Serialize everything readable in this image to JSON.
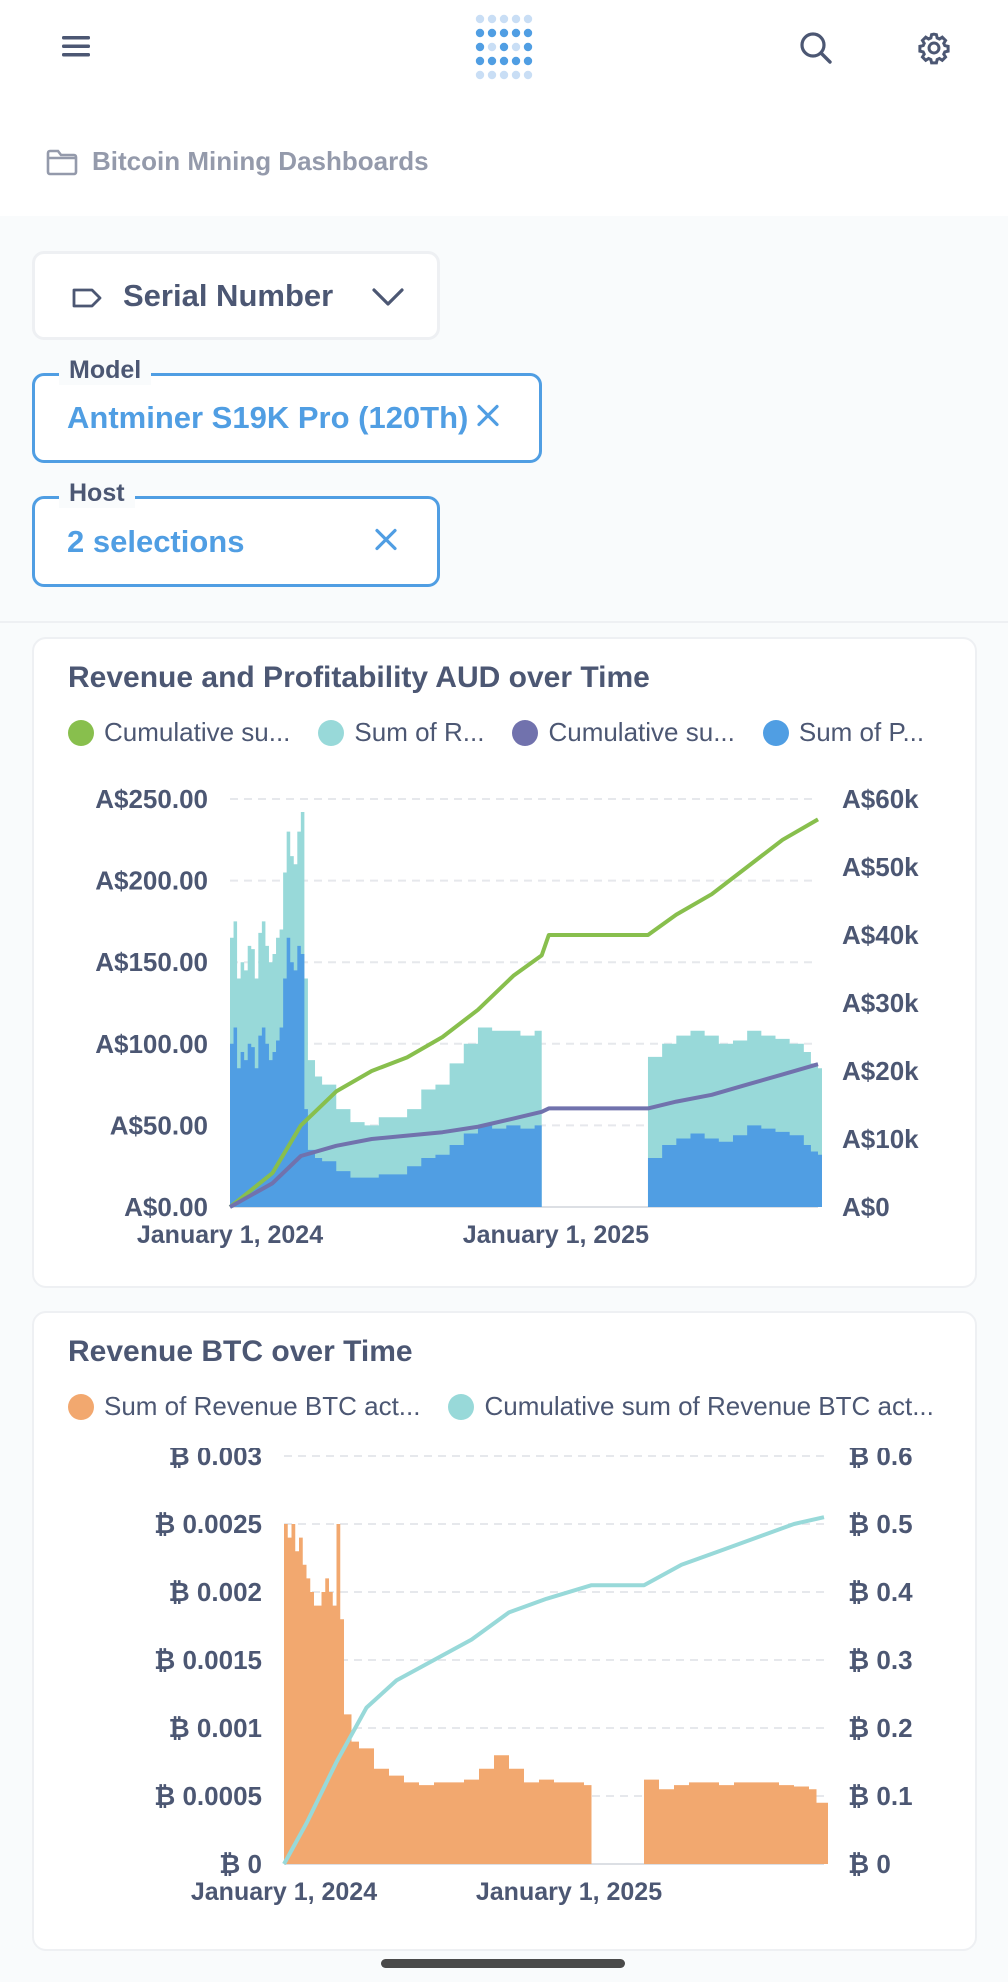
{
  "header": {
    "menu_icon": "hamburger-icon",
    "logo_icon": "metabase-logo-icon",
    "search_icon": "search-icon",
    "settings_icon": "gear-icon"
  },
  "breadcrumb": {
    "icon": "folder-icon",
    "label": "Bitcoin Mining Dashboards"
  },
  "filters": {
    "serial": {
      "label": "Serial Number",
      "icon": "tag-icon"
    },
    "model": {
      "legend": "Model",
      "value": "Antminer S19K Pro (120Th)"
    },
    "host": {
      "legend": "Host",
      "value": "2 selections"
    }
  },
  "colors": {
    "green": "#88BF4D",
    "teal": "#98D9D9",
    "purple": "#7172AD",
    "blue": "#509EE3",
    "orange": "#F2A86F"
  },
  "chart_data": [
    {
      "type": "bar",
      "title": "Revenue and Profitability AUD over Time",
      "legend": [
        "Cumulative su...",
        "Sum of R...",
        "Cumulative su...",
        "Sum of P..."
      ],
      "left_axis": {
        "ticks": [
          "A$0.00",
          "A$50.00",
          "A$100.00",
          "A$150.00",
          "A$200.00",
          "A$250.00"
        ],
        "range": [
          0,
          250
        ]
      },
      "right_axis": {
        "ticks": [
          "A$0",
          "A$10k",
          "A$20k",
          "A$30k",
          "A$40k",
          "A$50k",
          "A$60k"
        ],
        "range": [
          0,
          60000
        ]
      },
      "x_axis": {
        "ticks": [
          "January 1, 2024",
          "January 1, 2025"
        ]
      },
      "grid": true,
      "series": [
        {
          "color": "#98D9D9",
          "axis": "left",
          "kind": "bars",
          "points": [
            [
              0,
              165
            ],
            [
              0.05,
              175
            ],
            [
              0.1,
              140
            ],
            [
              0.15,
              150
            ],
            [
              0.2,
              145
            ],
            [
              0.25,
              160
            ],
            [
              0.3,
              158
            ],
            [
              0.35,
              140
            ],
            [
              0.4,
              168
            ],
            [
              0.45,
              175
            ],
            [
              0.5,
              160
            ],
            [
              0.55,
              150
            ],
            [
              0.6,
              155
            ],
            [
              0.65,
              165
            ],
            [
              0.7,
              170
            ],
            [
              0.75,
              205
            ],
            [
              0.8,
              230
            ],
            [
              0.85,
              215
            ],
            [
              0.9,
              210
            ],
            [
              0.95,
              230
            ],
            [
              1.0,
              242
            ],
            [
              1.05,
              140
            ],
            [
              1.1,
              90
            ],
            [
              1.2,
              80
            ],
            [
              1.3,
              75
            ],
            [
              1.5,
              60
            ],
            [
              1.7,
              52
            ],
            [
              1.9,
              50
            ],
            [
              2.1,
              55
            ],
            [
              2.3,
              55
            ],
            [
              2.5,
              60
            ],
            [
              2.7,
              72
            ],
            [
              2.9,
              75
            ],
            [
              3.1,
              88
            ],
            [
              3.3,
              100
            ],
            [
              3.5,
              110
            ],
            [
              3.7,
              108
            ],
            [
              3.9,
              108
            ],
            [
              4.1,
              105
            ],
            [
              4.3,
              108
            ],
            [
              4.4,
              0
            ],
            [
              5.8,
              0
            ],
            [
              5.9,
              92
            ],
            [
              6.1,
              100
            ],
            [
              6.3,
              105
            ],
            [
              6.5,
              108
            ],
            [
              6.7,
              105
            ],
            [
              6.9,
              100
            ],
            [
              7.1,
              102
            ],
            [
              7.3,
              108
            ],
            [
              7.5,
              105
            ],
            [
              7.7,
              103
            ],
            [
              7.9,
              100
            ],
            [
              8.1,
              95
            ],
            [
              8.2,
              88
            ],
            [
              8.3,
              85
            ]
          ]
        },
        {
          "color": "#509EE3",
          "axis": "left",
          "kind": "bars",
          "points": [
            [
              0,
              100
            ],
            [
              0.05,
              110
            ],
            [
              0.1,
              85
            ],
            [
              0.15,
              95
            ],
            [
              0.2,
              90
            ],
            [
              0.25,
              100
            ],
            [
              0.3,
              98
            ],
            [
              0.35,
              85
            ],
            [
              0.4,
              105
            ],
            [
              0.45,
              110
            ],
            [
              0.5,
              100
            ],
            [
              0.55,
              90
            ],
            [
              0.6,
              95
            ],
            [
              0.65,
              102
            ],
            [
              0.7,
              110
            ],
            [
              0.75,
              140
            ],
            [
              0.8,
              165
            ],
            [
              0.85,
              150
            ],
            [
              0.9,
              145
            ],
            [
              0.95,
              160
            ],
            [
              1.0,
              155
            ],
            [
              1.05,
              60
            ],
            [
              1.1,
              35
            ],
            [
              1.2,
              30
            ],
            [
              1.3,
              28
            ],
            [
              1.5,
              22
            ],
            [
              1.7,
              18
            ],
            [
              1.9,
              18
            ],
            [
              2.1,
              20
            ],
            [
              2.3,
              20
            ],
            [
              2.5,
              25
            ],
            [
              2.7,
              30
            ],
            [
              2.9,
              32
            ],
            [
              3.1,
              38
            ],
            [
              3.3,
              45
            ],
            [
              3.5,
              50
            ],
            [
              3.7,
              48
            ],
            [
              3.9,
              50
            ],
            [
              4.1,
              48
            ],
            [
              4.3,
              50
            ],
            [
              4.4,
              0
            ],
            [
              5.8,
              0
            ],
            [
              5.9,
              30
            ],
            [
              6.1,
              38
            ],
            [
              6.3,
              42
            ],
            [
              6.5,
              45
            ],
            [
              6.7,
              42
            ],
            [
              6.9,
              40
            ],
            [
              7.1,
              44
            ],
            [
              7.3,
              50
            ],
            [
              7.5,
              48
            ],
            [
              7.7,
              46
            ],
            [
              7.9,
              44
            ],
            [
              8.1,
              38
            ],
            [
              8.2,
              34
            ],
            [
              8.3,
              32
            ]
          ]
        },
        {
          "color": "#88BF4D",
          "axis": "right",
          "kind": "line",
          "points": [
            [
              0,
              0
            ],
            [
              0.6,
              5000
            ],
            [
              1.0,
              12000
            ],
            [
              1.5,
              17000
            ],
            [
              2.0,
              20000
            ],
            [
              2.5,
              22000
            ],
            [
              3.0,
              25000
            ],
            [
              3.5,
              29000
            ],
            [
              4.0,
              34000
            ],
            [
              4.4,
              37000
            ],
            [
              4.5,
              40000
            ],
            [
              5.0,
              40000
            ],
            [
              5.5,
              40000
            ],
            [
              5.9,
              40000
            ],
            [
              6.3,
              43000
            ],
            [
              6.8,
              46000
            ],
            [
              7.3,
              50000
            ],
            [
              7.8,
              54000
            ],
            [
              8.3,
              57000
            ]
          ]
        },
        {
          "color": "#7172AD",
          "axis": "right",
          "kind": "line",
          "points": [
            [
              0,
              0
            ],
            [
              0.6,
              3500
            ],
            [
              1.0,
              7500
            ],
            [
              1.5,
              9000
            ],
            [
              2.0,
              10000
            ],
            [
              2.5,
              10500
            ],
            [
              3.0,
              11000
            ],
            [
              3.5,
              11800
            ],
            [
              4.0,
              13000
            ],
            [
              4.4,
              14000
            ],
            [
              4.5,
              14500
            ],
            [
              5.0,
              14500
            ],
            [
              5.5,
              14500
            ],
            [
              5.9,
              14500
            ],
            [
              6.3,
              15500
            ],
            [
              6.8,
              16500
            ],
            [
              7.3,
              18000
            ],
            [
              7.8,
              19500
            ],
            [
              8.3,
              21000
            ]
          ]
        }
      ]
    },
    {
      "type": "bar",
      "title": "Revenue BTC over Time",
      "legend": [
        "Sum of Revenue BTC act...",
        "Cumulative sum of Revenue BTC act..."
      ],
      "left_axis": {
        "ticks": [
          "₿ 0",
          "₿ 0.0005",
          "₿ 0.001",
          "₿ 0.0015",
          "₿ 0.002",
          "₿ 0.0025",
          "₿ 0.003"
        ],
        "range": [
          0,
          0.003
        ]
      },
      "right_axis": {
        "ticks": [
          "₿ 0",
          "₿ 0.1",
          "₿ 0.2",
          "₿ 0.3",
          "₿ 0.4",
          "₿ 0.5",
          "₿ 0.6"
        ],
        "range": [
          0,
          0.6
        ]
      },
      "x_axis": {
        "ticks": [
          "January 1, 2024",
          "January 1, 2025"
        ]
      },
      "grid": true,
      "series": [
        {
          "color": "#F2A86F",
          "axis": "left",
          "kind": "bars",
          "points": [
            [
              0,
              0.0025
            ],
            [
              0.05,
              0.0024
            ],
            [
              0.1,
              0.0025
            ],
            [
              0.15,
              0.0023
            ],
            [
              0.2,
              0.0024
            ],
            [
              0.25,
              0.0022
            ],
            [
              0.3,
              0.0021
            ],
            [
              0.35,
              0.002
            ],
            [
              0.4,
              0.0019
            ],
            [
              0.45,
              0.0019
            ],
            [
              0.5,
              0.002
            ],
            [
              0.55,
              0.0021
            ],
            [
              0.6,
              0.002
            ],
            [
              0.65,
              0.0019
            ],
            [
              0.7,
              0.0025
            ],
            [
              0.75,
              0.0018
            ],
            [
              0.8,
              0.0011
            ],
            [
              0.9,
              0.0009
            ],
            [
              1.0,
              0.00085
            ],
            [
              1.2,
              0.0007
            ],
            [
              1.4,
              0.00065
            ],
            [
              1.6,
              0.0006
            ],
            [
              1.8,
              0.00058
            ],
            [
              2.0,
              0.0006
            ],
            [
              2.2,
              0.0006
            ],
            [
              2.4,
              0.00062
            ],
            [
              2.6,
              0.0007
            ],
            [
              2.8,
              0.0008
            ],
            [
              3.0,
              0.0007
            ],
            [
              3.2,
              0.0006
            ],
            [
              3.4,
              0.00062
            ],
            [
              3.6,
              0.0006
            ],
            [
              3.8,
              0.0006
            ],
            [
              4.0,
              0.00058
            ],
            [
              4.1,
              0
            ],
            [
              4.7,
              0
            ],
            [
              4.8,
              0.00062
            ],
            [
              5.0,
              0.00055
            ],
            [
              5.2,
              0.00058
            ],
            [
              5.4,
              0.0006
            ],
            [
              5.6,
              0.0006
            ],
            [
              5.8,
              0.00058
            ],
            [
              6.0,
              0.0006
            ],
            [
              6.2,
              0.0006
            ],
            [
              6.4,
              0.0006
            ],
            [
              6.6,
              0.00058
            ],
            [
              6.8,
              0.00057
            ],
            [
              7.0,
              0.00055
            ],
            [
              7.1,
              0.00045
            ],
            [
              7.2,
              0.00045
            ]
          ]
        },
        {
          "color": "#98D9D9",
          "axis": "right",
          "kind": "line",
          "points": [
            [
              0,
              0
            ],
            [
              0.3,
              0.06
            ],
            [
              0.7,
              0.15
            ],
            [
              1.1,
              0.23
            ],
            [
              1.5,
              0.27
            ],
            [
              2.0,
              0.3
            ],
            [
              2.5,
              0.33
            ],
            [
              3.0,
              0.37
            ],
            [
              3.5,
              0.39
            ],
            [
              4.1,
              0.41
            ],
            [
              4.5,
              0.41
            ],
            [
              4.8,
              0.41
            ],
            [
              5.3,
              0.44
            ],
            [
              5.8,
              0.46
            ],
            [
              6.3,
              0.48
            ],
            [
              6.8,
              0.5
            ],
            [
              7.2,
              0.51
            ]
          ]
        }
      ]
    }
  ]
}
